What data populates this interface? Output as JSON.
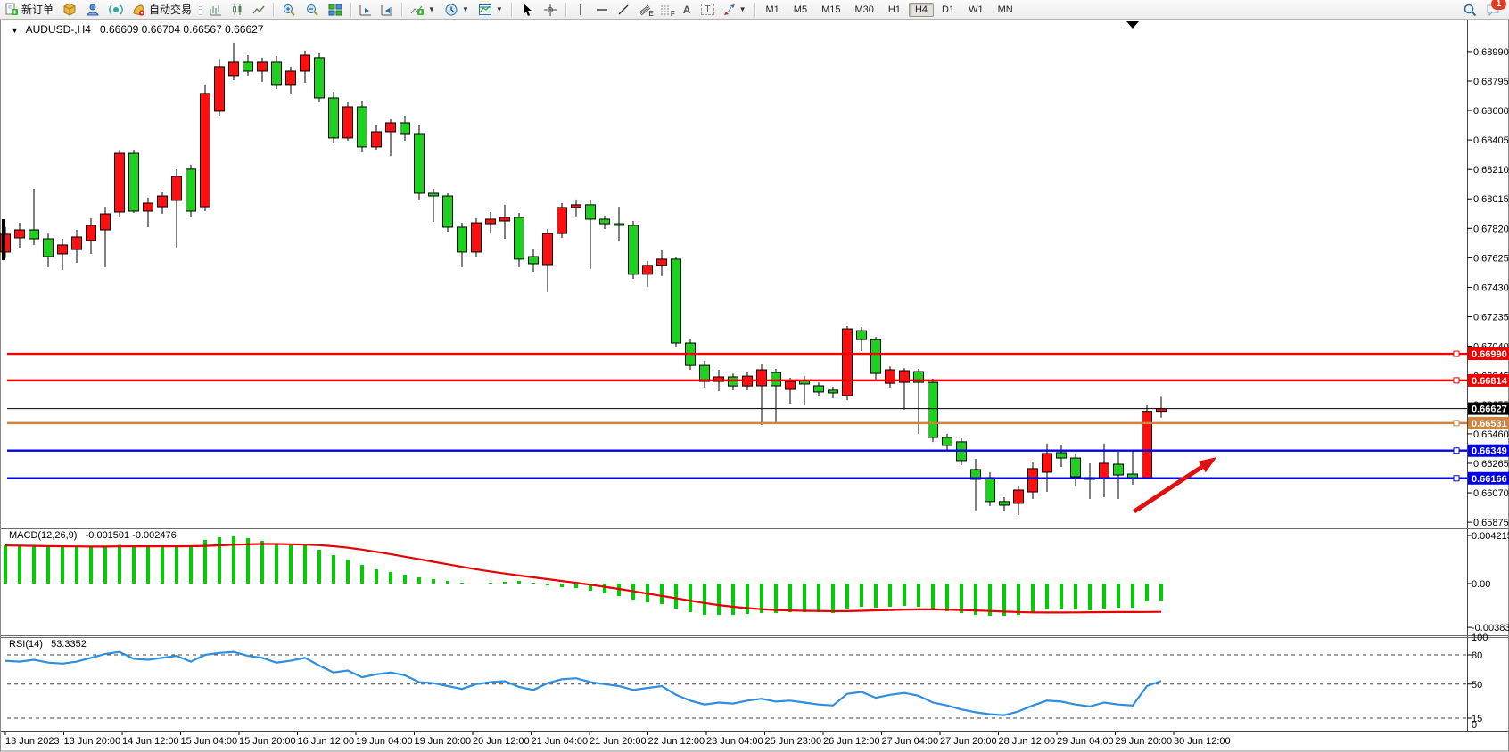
{
  "toolbar": {
    "new_order_label": "新订单",
    "auto_trading_label": "自动交易",
    "tool_letters": {
      "annotation": "A",
      "textbox": "T",
      "channel": "E",
      "fibonacci": "F"
    },
    "timeframes": [
      "M1",
      "M5",
      "M15",
      "M30",
      "H1",
      "H4",
      "D1",
      "W1",
      "MN"
    ],
    "active_timeframe": "H4",
    "notification_count": "1"
  },
  "chart_data": {
    "type": "candlestick",
    "symbol_title": "AUDUSD-,H4",
    "ohlc_display": "0.66609 0.66704 0.66567 0.66627",
    "y_range": {
      "min": 0.65852,
      "max": 0.69196
    },
    "price_axis_ticks": [
      "0.68990",
      "0.68795",
      "0.68600",
      "0.68405",
      "0.68210",
      "0.68015",
      "0.67820",
      "0.67625",
      "0.67430",
      "0.67235",
      "0.67040",
      "0.66845",
      "0.66655",
      "0.66460",
      "0.66265",
      "0.66070",
      "0.65875"
    ],
    "candles": [
      [
        0.67663,
        0.67828,
        0.67622,
        0.67781
      ],
      [
        0.67757,
        0.67857,
        0.67692,
        0.6781
      ],
      [
        0.6781,
        0.68081,
        0.6771,
        0.67751
      ],
      [
        0.67751,
        0.67786,
        0.67563,
        0.67633
      ],
      [
        0.67651,
        0.67751,
        0.67545,
        0.6771
      ],
      [
        0.6768,
        0.6781,
        0.67592,
        0.67763
      ],
      [
        0.6774,
        0.67887,
        0.67651,
        0.6784
      ],
      [
        0.6781,
        0.67963,
        0.67563,
        0.67916
      ],
      [
        0.67928,
        0.6834,
        0.67893,
        0.68317
      ],
      [
        0.68317,
        0.6834,
        0.67922,
        0.67934
      ],
      [
        0.67934,
        0.68023,
        0.67828,
        0.67987
      ],
      [
        0.67963,
        0.68064,
        0.67916,
        0.68034
      ],
      [
        0.68005,
        0.68211,
        0.67693,
        0.68164
      ],
      [
        0.68212,
        0.68241,
        0.67893,
        0.67934
      ],
      [
        0.67963,
        0.68772,
        0.67934,
        0.68713
      ],
      [
        0.68595,
        0.6894,
        0.68565,
        0.6889
      ],
      [
        0.68831,
        0.69049,
        0.68801,
        0.68919
      ],
      [
        0.68919,
        0.68966,
        0.68831,
        0.6886
      ],
      [
        0.6886,
        0.68949,
        0.6879,
        0.68919
      ],
      [
        0.68919,
        0.6896,
        0.68742,
        0.68772
      ],
      [
        0.68772,
        0.6889,
        0.68713,
        0.6886
      ],
      [
        0.6886,
        0.68996,
        0.68783,
        0.68966
      ],
      [
        0.68949,
        0.68978,
        0.68654,
        0.68683
      ],
      [
        0.68683,
        0.68724,
        0.68382,
        0.68418
      ],
      [
        0.68418,
        0.68654,
        0.684,
        0.68624
      ],
      [
        0.68624,
        0.68665,
        0.68323,
        0.68359
      ],
      [
        0.68359,
        0.68506,
        0.68341,
        0.68459
      ],
      [
        0.68459,
        0.68547,
        0.68298,
        0.68518
      ],
      [
        0.68518,
        0.68565,
        0.684,
        0.68447
      ],
      [
        0.68447,
        0.68506,
        0.68005,
        0.68052
      ],
      [
        0.68052,
        0.68081,
        0.67863,
        0.68034
      ],
      [
        0.68034,
        0.68052,
        0.67798,
        0.67828
      ],
      [
        0.67828,
        0.67857,
        0.67563,
        0.67663
      ],
      [
        0.67663,
        0.67887,
        0.67633,
        0.67857
      ],
      [
        0.67851,
        0.67928,
        0.67786,
        0.67881
      ],
      [
        0.67869,
        0.67976,
        0.67751,
        0.67893
      ],
      [
        0.67893,
        0.67922,
        0.67563,
        0.67616
      ],
      [
        0.67633,
        0.6768,
        0.67533,
        0.67586
      ],
      [
        0.6758,
        0.67816,
        0.67398,
        0.67786
      ],
      [
        0.67786,
        0.67987,
        0.67757,
        0.67958
      ],
      [
        0.67958,
        0.68011,
        0.67899,
        0.67976
      ],
      [
        0.67976,
        0.68005,
        0.67551,
        0.67881
      ],
      [
        0.67881,
        0.67905,
        0.67816,
        0.67851
      ],
      [
        0.67851,
        0.67963,
        0.67739,
        0.6784
      ],
      [
        0.6784,
        0.67869,
        0.67486,
        0.67516
      ],
      [
        0.67516,
        0.67604,
        0.67433,
        0.67575
      ],
      [
        0.67575,
        0.67675,
        0.67504,
        0.67616
      ],
      [
        0.67616,
        0.67633,
        0.67032,
        0.67061
      ],
      [
        0.67061,
        0.6709,
        0.66884,
        0.66913
      ],
      [
        0.66913,
        0.66943,
        0.66766,
        0.66807
      ],
      [
        0.66807,
        0.66884,
        0.66742,
        0.66837
      ],
      [
        0.66837,
        0.6686,
        0.66748,
        0.66777
      ],
      [
        0.66777,
        0.66872,
        0.66748,
        0.66842
      ],
      [
        0.66778,
        0.66925,
        0.66519,
        0.66884
      ],
      [
        0.66866,
        0.6689,
        0.66524,
        0.66778
      ],
      [
        0.66754,
        0.66831,
        0.6666,
        0.66807
      ],
      [
        0.66813,
        0.66842,
        0.66654,
        0.6679
      ],
      [
        0.66778,
        0.66801,
        0.66707,
        0.66737
      ],
      [
        0.66749,
        0.66772,
        0.66695,
        0.66731
      ],
      [
        0.66713,
        0.67173,
        0.66683,
        0.67155
      ],
      [
        0.67143,
        0.67167,
        0.67008,
        0.67084
      ],
      [
        0.67084,
        0.67102,
        0.66819,
        0.6686
      ],
      [
        0.66795,
        0.66907,
        0.66766,
        0.66884
      ],
      [
        0.66801,
        0.66895,
        0.6662,
        0.66878
      ],
      [
        0.66872,
        0.6689,
        0.6646,
        0.66801
      ],
      [
        0.66801,
        0.66825,
        0.66406,
        0.66436
      ],
      [
        0.66436,
        0.6646,
        0.66353,
        0.66383
      ],
      [
        0.66407,
        0.6643,
        0.66253,
        0.66283
      ],
      [
        0.66224,
        0.66294,
        0.65953,
        0.66159
      ],
      [
        0.66171,
        0.66206,
        0.65982,
        0.66012
      ],
      [
        0.66012,
        0.66041,
        0.65947,
        0.65988
      ],
      [
        0.66,
        0.66112,
        0.65923,
        0.66088
      ],
      [
        0.66076,
        0.66277,
        0.66029,
        0.6623
      ],
      [
        0.66206,
        0.66395,
        0.66076,
        0.6633
      ],
      [
        0.66336,
        0.66389,
        0.66241,
        0.663
      ],
      [
        0.663,
        0.6633,
        0.66112,
        0.66176
      ],
      [
        0.66171,
        0.66265,
        0.66029,
        0.66159
      ],
      [
        0.66165,
        0.66395,
        0.66041,
        0.66265
      ],
      [
        0.66259,
        0.66342,
        0.66029,
        0.66188
      ],
      [
        0.66194,
        0.66354,
        0.66123,
        0.66165
      ],
      [
        0.6617,
        0.6665,
        0.6616,
        0.66609
      ],
      [
        0.66609,
        0.66704,
        0.66567,
        0.66627
      ]
    ],
    "colors": {
      "bull": "#ff0f0f",
      "bear": "#1dd11d",
      "wick": "#000000"
    },
    "horizontal_lines": [
      {
        "price": 0.6699,
        "label": "0.66990",
        "color": "#f00000"
      },
      {
        "price": 0.66814,
        "label": "0.66814",
        "color": "#f00000"
      },
      {
        "price": 0.66531,
        "label": "0.66531",
        "color": "#cd853f"
      },
      {
        "price": 0.66349,
        "label": "0.66349",
        "color": "#0000e0"
      },
      {
        "price": 0.66166,
        "label": "0.66166",
        "color": "#0000e0"
      }
    ],
    "current_price": {
      "value": 0.66627,
      "label": "0.66627",
      "color": "#000000"
    },
    "trend_arrow": {
      "from_bar": 79.1,
      "from_price": 0.65946,
      "to_bar": 84.9,
      "to_price": 0.66306,
      "color": "#e01010"
    },
    "macd": {
      "label": "MACD(12,26,9)",
      "value_text": "-0.001501 -0.002476",
      "axis_ticks": [
        "0.004215",
        "0.00",
        "-0.003835"
      ],
      "tick_values": [
        0.004215,
        0,
        -0.003835
      ],
      "y_range": {
        "min": -0.00445,
        "max": 0.00484
      },
      "hist_color": "#00cc00",
      "signal_color": "#e60000",
      "histogram": [
        0.00336,
        0.00332,
        0.00328,
        0.00324,
        0.0032,
        0.0032,
        0.00324,
        0.00332,
        0.0034,
        0.00336,
        0.00328,
        0.00324,
        0.00328,
        0.0032,
        0.00383,
        0.00406,
        0.00414,
        0.00398,
        0.00375,
        0.00352,
        0.00336,
        0.0034,
        0.00297,
        0.0025,
        0.00211,
        0.00164,
        0.00125,
        0.00102,
        0.00078,
        0.00055,
        0.00039,
        0.00023,
        8e-05,
        0.0,
        8e-05,
        0.00016,
        0.00023,
        8e-05,
        -0.00016,
        -0.00031,
        -0.00039,
        -0.00063,
        -0.00086,
        -0.00109,
        -0.00141,
        -0.00164,
        -0.0018,
        -0.00219,
        -0.0025,
        -0.00273,
        -0.00273,
        -0.00273,
        -0.00266,
        -0.00258,
        -0.00258,
        -0.0025,
        -0.0025,
        -0.0025,
        -0.00258,
        -0.00219,
        -0.00203,
        -0.00211,
        -0.00203,
        -0.00195,
        -0.00203,
        -0.00227,
        -0.00242,
        -0.00258,
        -0.00273,
        -0.00281,
        -0.00281,
        -0.00273,
        -0.0025,
        -0.00227,
        -0.00219,
        -0.00227,
        -0.00234,
        -0.00219,
        -0.00211,
        -0.00211,
        -0.00156,
        -0.001501
      ],
      "signal": [
        0.00335,
        0.00333,
        0.00331,
        0.00329,
        0.00327,
        0.00326,
        0.00325,
        0.00325,
        0.00326,
        0.00327,
        0.00327,
        0.00327,
        0.00327,
        0.00328,
        0.00331,
        0.00336,
        0.00341,
        0.00345,
        0.00347,
        0.00347,
        0.00345,
        0.00342,
        0.00337,
        0.00328,
        0.00315,
        0.00298,
        0.00279,
        0.00258,
        0.00236,
        0.00214,
        0.00191,
        0.00169,
        0.00147,
        0.00126,
        0.00106,
        0.00088,
        0.00071,
        0.00055,
        0.00039,
        0.00023,
        7e-05,
        -0.0001,
        -0.00028,
        -0.00047,
        -0.00067,
        -0.00088,
        -0.00108,
        -0.00129,
        -0.0015,
        -0.0017,
        -0.00188,
        -0.00203,
        -0.00215,
        -0.00224,
        -0.00231,
        -0.00235,
        -0.00238,
        -0.0024,
        -0.00242,
        -0.00241,
        -0.00238,
        -0.00234,
        -0.00231,
        -0.00228,
        -0.00226,
        -0.00226,
        -0.00228,
        -0.00231,
        -0.00235,
        -0.0024,
        -0.00245,
        -0.00249,
        -0.00252,
        -0.00253,
        -0.00253,
        -0.00252,
        -0.00251,
        -0.0025,
        -0.00249,
        -0.00249,
        -0.00248,
        -0.002476
      ]
    },
    "rsi": {
      "label": "RSI(14)",
      "value_text": "53.3352",
      "levels": [
        80,
        50,
        15
      ],
      "axis_labels": [
        "100",
        "80",
        "50",
        "15",
        "0"
      ],
      "axis_values": [
        100,
        80,
        50,
        15,
        0
      ],
      "line_color": "#2e8fe0",
      "values": [
        74,
        73,
        75,
        72,
        71,
        73,
        77,
        81,
        83,
        76,
        75,
        77,
        79,
        73,
        80,
        82,
        83,
        79,
        77,
        72,
        74,
        77,
        69,
        62,
        64,
        57,
        60,
        62,
        59,
        52,
        51,
        48,
        45,
        50,
        52,
        53,
        47,
        44,
        51,
        55,
        56,
        52,
        50,
        48,
        44,
        46,
        48,
        39,
        33,
        29,
        31,
        30,
        33,
        35,
        32,
        33,
        31,
        29,
        28,
        40,
        42,
        36,
        39,
        41,
        38,
        31,
        28,
        24,
        21,
        19,
        18,
        22,
        28,
        33,
        32,
        29,
        27,
        31,
        29,
        28,
        48,
        53.34
      ]
    },
    "time_axis_labels": [
      "13 Jun 2023",
      "13 Jun 20:00",
      "14 Jun 12:00",
      "15 Jun 04:00",
      "15 Jun 20:00",
      "16 Jun 12:00",
      "19 Jun 04:00",
      "19 Jun 20:00",
      "20 Jun 12:00",
      "21 Jun 04:00",
      "21 Jun 20:00",
      "22 Jun 12:00",
      "23 Jun 04:00",
      "25 Jun 23:00",
      "26 Jun 12:00",
      "27 Jun 04:00",
      "27 Jun 20:00",
      "28 Jun 12:00",
      "29 Jun 04:00",
      "29 Jun 20:00",
      "30 Jun 12:00"
    ]
  }
}
